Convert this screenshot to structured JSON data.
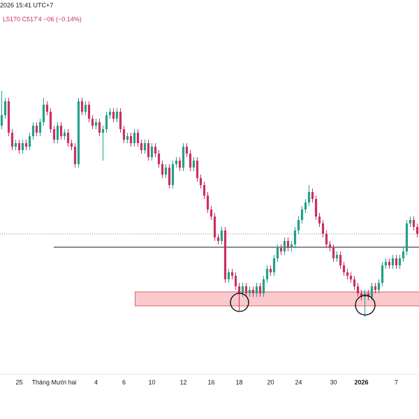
{
  "chart_data": {
    "type": "candlestick",
    "header_time": "2026 15:41 UTC+7",
    "header_quote": "L5170  C517'4  −06 (−0.14%)",
    "up_color": "#22a08a",
    "down_color": "#cc2f62",
    "ylim": [
      497.5,
      547
    ],
    "hline": 515.6,
    "zone": [
      507.2,
      509.2
    ],
    "zone_color": "#f9c9cd",
    "categories": [
      null,
      null,
      null,
      null,
      null,
      "25",
      null,
      null,
      null,
      null,
      null,
      null,
      null,
      null,
      null,
      "Tháng Mười hai",
      null,
      null,
      null,
      null,
      null,
      null,
      null,
      null,
      null,
      null,
      null,
      "4",
      null,
      null,
      null,
      null,
      null,
      null,
      null,
      "6",
      null,
      null,
      null,
      null,
      null,
      null,
      null,
      "10",
      null,
      null,
      null,
      null,
      null,
      null,
      null,
      null,
      "12",
      null,
      null,
      null,
      null,
      null,
      null,
      null,
      "16",
      null,
      null,
      null,
      null,
      null,
      null,
      null,
      "18",
      null,
      null,
      null,
      null,
      null,
      null,
      null,
      null,
      "20",
      null,
      null,
      null,
      null,
      null,
      null,
      null,
      "24",
      null,
      null,
      null,
      null,
      null,
      null,
      null,
      null,
      null,
      "30",
      null,
      null,
      null,
      null,
      null,
      null,
      null,
      "2026",
      null,
      null,
      null,
      null,
      null,
      null,
      null,
      null,
      null,
      "7",
      null,
      null,
      null,
      null,
      null,
      null
    ],
    "open": [
      533,
      534.5,
      536.5,
      532,
      530,
      530.5,
      529.5,
      530.5,
      530,
      531.5,
      533,
      532,
      533.5,
      536,
      535,
      532.5,
      531,
      533,
      531.5,
      532,
      530.5,
      530,
      527.5,
      536.5,
      535,
      536,
      534,
      533,
      533.5,
      532,
      532.5,
      534.5,
      535,
      534,
      535,
      532.5,
      531,
      531.5,
      530.5,
      532,
      530.5,
      529.5,
      530.5,
      528.5,
      530,
      529,
      527.5,
      526,
      527,
      524.5,
      527.5,
      528,
      527,
      530,
      529,
      527,
      528,
      525.5,
      524.5,
      523,
      521,
      520,
      517,
      516.5,
      518,
      511,
      512,
      511.5,
      510,
      509,
      510,
      509,
      509.5,
      509,
      510,
      509,
      511,
      512.5,
      512,
      514,
      515.5,
      515,
      516.5,
      515.5,
      516,
      518,
      519.5,
      521,
      522,
      523.5,
      522.5,
      520,
      519,
      517.5,
      516,
      515.5,
      514,
      514.5,
      513,
      512,
      511.5,
      511,
      510,
      509,
      508.5,
      509,
      508.5,
      510,
      509.5,
      510.5,
      513,
      513.5,
      513,
      514,
      513,
      514,
      515,
      519,
      519.5,
      518.5
    ],
    "high": [
      538,
      537,
      537,
      532.5,
      531,
      531,
      531,
      531,
      532,
      533.5,
      533.5,
      534,
      537,
      536.5,
      535.5,
      533,
      533.5,
      533.5,
      532.5,
      532.5,
      531,
      530.5,
      537,
      537,
      536.5,
      536.5,
      534.5,
      534,
      534,
      533,
      535,
      535.5,
      535.5,
      535.5,
      535.5,
      533,
      532,
      532,
      532.5,
      532.5,
      531,
      531,
      531,
      530.5,
      530.5,
      529.5,
      528,
      527.5,
      527.5,
      528,
      528.5,
      528.5,
      530.5,
      530.5,
      529.5,
      528.5,
      528.5,
      526,
      525,
      523.5,
      521.5,
      520.5,
      517.5,
      518.5,
      518.5,
      512.5,
      512.5,
      512,
      510.5,
      510.5,
      510.5,
      510,
      510,
      510.5,
      510.5,
      511.5,
      513,
      513,
      514.5,
      516,
      516,
      517,
      517,
      516.5,
      518.5,
      520,
      521.5,
      522.5,
      524.5,
      524,
      523,
      520.5,
      519.5,
      518,
      516.5,
      516,
      515,
      515,
      513.5,
      512.5,
      512,
      511.5,
      510.5,
      509.5,
      509.5,
      509.5,
      510.5,
      510.5,
      511,
      513.5,
      514,
      514,
      514.5,
      514.5,
      514.5,
      515.5,
      519.5,
      520,
      520,
      519
    ],
    "low": [
      532.5,
      534,
      531.5,
      529.5,
      529.5,
      529,
      529,
      529.5,
      529.5,
      531,
      531.5,
      531.5,
      533,
      534.5,
      532,
      530.5,
      530.5,
      531,
      531,
      530,
      529.5,
      527,
      527,
      534.5,
      534.5,
      533.5,
      532.5,
      532.5,
      531.5,
      528,
      532,
      534,
      533.5,
      533.5,
      532,
      530.5,
      530.5,
      530,
      530,
      530,
      529,
      529,
      528,
      528,
      528.5,
      527,
      525.5,
      525.5,
      524,
      524,
      527,
      526.5,
      526.5,
      528.5,
      526.5,
      526.5,
      525,
      524,
      522.5,
      520.5,
      519.5,
      516.5,
      516,
      516,
      510.5,
      510.5,
      511,
      509.5,
      506.5,
      508.5,
      508.5,
      508.5,
      508.5,
      508.5,
      508.5,
      508.5,
      510.5,
      511.5,
      511.5,
      513.5,
      514.5,
      514.5,
      515,
      515,
      515.5,
      517.5,
      519,
      520.5,
      521.5,
      522,
      519.5,
      518.5,
      517,
      515.5,
      515,
      513.5,
      513.5,
      512.5,
      511.5,
      511,
      510.5,
      509.5,
      508.5,
      508,
      505.6,
      508,
      508,
      509,
      509,
      510,
      512.5,
      512.5,
      512.5,
      512.5,
      512.5,
      513.5,
      514.5,
      518.5,
      518,
      517
    ],
    "close": [
      534.5,
      536.5,
      532,
      530,
      530.5,
      529.5,
      530.5,
      530,
      531.5,
      533,
      532,
      533.5,
      536,
      535,
      532.5,
      531,
      533,
      531.5,
      532,
      530.5,
      530,
      527.5,
      536.5,
      535,
      536,
      534,
      533,
      533.5,
      532,
      532.5,
      534.5,
      535,
      534,
      535,
      532.5,
      531,
      531.5,
      530.5,
      532,
      530.5,
      529.5,
      530.5,
      528.5,
      530,
      529,
      527.5,
      526,
      527,
      524.5,
      527.5,
      528,
      527,
      530,
      529,
      527,
      528,
      525.5,
      524.5,
      523,
      521,
      520,
      517,
      516.5,
      518,
      511,
      512,
      511.5,
      510,
      509,
      510,
      509,
      509.5,
      509,
      510,
      509,
      511,
      512.5,
      512,
      514,
      515.5,
      515,
      516.5,
      515.5,
      516,
      518,
      519.5,
      521,
      522,
      523.5,
      522.5,
      520,
      519,
      517.5,
      516,
      515.5,
      514,
      514.5,
      513,
      512,
      511.5,
      511,
      510,
      509,
      508.5,
      509,
      508.5,
      510,
      509.5,
      510.5,
      513,
      513.5,
      513,
      514,
      513,
      514,
      515,
      519,
      519.5,
      518.5,
      517.5
    ]
  }
}
